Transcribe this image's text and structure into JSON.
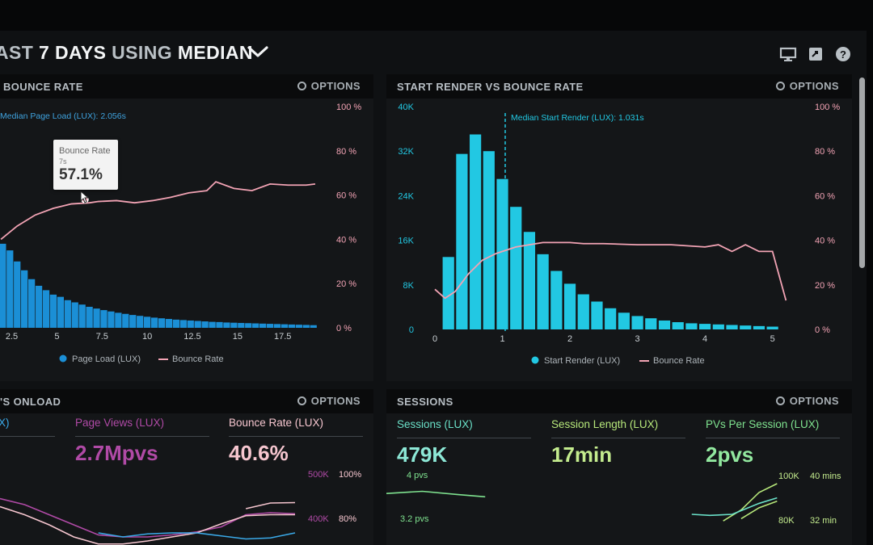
{
  "header": {
    "title_dim_1": "AST ",
    "title_bold_1": "7 DAYS ",
    "title_dim_2": "USING ",
    "title_bold_2": "MEDIAN",
    "icons": [
      "monitor-icon",
      "share-icon",
      "help-icon"
    ]
  },
  "options_label": "OPTIONS",
  "bounce_panel": {
    "title": "BOUNCE RATE",
    "annotation": "Median Page Load (LUX): 2.056s",
    "tooltip": {
      "label": "Bounce Rate",
      "sub": "7s",
      "value": "57.1%"
    },
    "legend": [
      "Page Load (LUX)",
      "Bounce Rate"
    ]
  },
  "start_render_panel": {
    "title": "START RENDER VS BOUNCE RATE",
    "annotation": "Median Start Render (LUX): 1.031s",
    "legend": [
      "Start Render (LUX)",
      "Bounce Rate"
    ]
  },
  "onload_panel": {
    "title": "'S ONLOAD",
    "kpis": [
      {
        "label": "X)",
        "value": ""
      },
      {
        "label": "Page Views (LUX)",
        "value": "2.7Mpvs"
      },
      {
        "label": "Bounce Rate (LUX)",
        "value": "40.6%"
      }
    ],
    "axis_left": [
      "500K",
      "400K"
    ],
    "axis_right": [
      "100%",
      "80%"
    ]
  },
  "sessions_panel": {
    "title": "SESSIONS",
    "kpis": [
      {
        "label": "Sessions (LUX)",
        "value": "479K"
      },
      {
        "label": "Session Length (LUX)",
        "value": "17min"
      },
      {
        "label": "PVs Per Session (LUX)",
        "value": "2pvs"
      }
    ],
    "axis_left": [
      "4 pvs",
      "3.2 pvs"
    ],
    "axis_mid": [
      "100K",
      "80K"
    ],
    "axis_right": [
      "40 mins",
      "32 min"
    ]
  },
  "colors": {
    "bar_blue": "#1b8fd6",
    "bar_cyan": "#22c8e3",
    "bounce_pink": "#f2a3b4",
    "purple": "#b04aa6",
    "light_pink": "#f6c6cf",
    "teal": "#6ae0c8",
    "lime": "#b6e77a",
    "green": "#7fe28f"
  },
  "chart_data": [
    {
      "type": "bar",
      "title": "BOUNCE RATE",
      "x_ticks": [
        "2.5",
        "5",
        "7.5",
        "10",
        "12.5",
        "15",
        "17.5"
      ],
      "y_right_ticks": [
        "0 %",
        "20 %",
        "40 %",
        "60 %",
        "80 %",
        "100 %"
      ],
      "xlim": [
        1.85,
        19.75
      ],
      "ylim_right": [
        0,
        100
      ],
      "legend_position": "bottom",
      "series": [
        {
          "name": "Page Load (LUX)",
          "kind": "bar",
          "bar_width": 0.37,
          "x": [
            2.0,
            2.4,
            2.8,
            3.2,
            3.6,
            4.0,
            4.4,
            4.8,
            5.2,
            5.6,
            6.0,
            6.4,
            6.8,
            7.2,
            7.6,
            8.0,
            8.4,
            8.8,
            9.2,
            9.6,
            10.0,
            10.4,
            10.8,
            11.2,
            11.6,
            12.0,
            12.4,
            12.8,
            13.2,
            13.6,
            14.0,
            14.4,
            14.8,
            15.2,
            15.6,
            16.0,
            16.4,
            16.8,
            17.2,
            17.6,
            18.0,
            18.4,
            18.8,
            19.2
          ],
          "values": [
            38,
            35,
            30,
            26,
            22,
            19,
            17,
            15,
            14,
            12.5,
            11.5,
            10.5,
            9.5,
            8.7,
            8,
            7.4,
            6.8,
            6.3,
            5.8,
            5.4,
            5,
            4.6,
            4.3,
            4,
            3.7,
            3.5,
            3.3,
            3.1,
            2.9,
            2.7,
            2.6,
            2.4,
            2.3,
            2.2,
            2.1,
            2,
            1.9,
            1.8,
            1.7,
            1.6,
            1.5,
            1.4,
            1.3,
            1.2
          ]
        },
        {
          "name": "Bounce Rate",
          "kind": "line",
          "x": [
            1.9,
            2.8,
            3.8,
            4.8,
            5.8,
            6.8,
            7.3,
            8.3,
            9.3,
            10.3,
            11.3,
            12.3,
            13.3,
            13.8,
            14.8,
            15.8,
            16.8,
            17.8,
            18.8,
            19.3
          ],
          "values": [
            40,
            46,
            51,
            54,
            56,
            56.5,
            57.1,
            57.5,
            56.5,
            57.5,
            59,
            61,
            62,
            66,
            63,
            62,
            65,
            64.5,
            64.5,
            65
          ]
        }
      ]
    },
    {
      "type": "bar",
      "title": "START RENDER VS BOUNCE RATE",
      "x_ticks": [
        "0",
        "1",
        "2",
        "3",
        "4",
        "5"
      ],
      "y_left_ticks": [
        "0",
        "8K",
        "16K",
        "24K",
        "32K",
        "40K"
      ],
      "y_right_ticks": [
        "0 %",
        "20 %",
        "40 %",
        "60 %",
        "80 %",
        "100 %"
      ],
      "xlim": [
        0,
        5.1
      ],
      "ylim_left": [
        0,
        40000
      ],
      "ylim_right": [
        0,
        100
      ],
      "legend_position": "bottom",
      "series": [
        {
          "name": "Start Render (LUX)",
          "kind": "bar",
          "bar_width": 0.17,
          "x": [
            0.2,
            0.4,
            0.6,
            0.8,
            1.0,
            1.2,
            1.4,
            1.6,
            1.8,
            2.0,
            2.2,
            2.4,
            2.6,
            2.8,
            3.0,
            3.2,
            3.4,
            3.6,
            3.8,
            4.0,
            4.2,
            4.4,
            4.6,
            4.8,
            5.0
          ],
          "values": [
            13000,
            31500,
            35000,
            32000,
            27000,
            22000,
            17500,
            13500,
            10500,
            8200,
            6300,
            5000,
            3800,
            3000,
            2400,
            2000,
            1600,
            1300,
            1100,
            1000,
            900,
            800,
            700,
            600,
            500
          ]
        },
        {
          "name": "Bounce Rate",
          "kind": "line",
          "x": [
            0,
            0.15,
            0.3,
            0.5,
            0.7,
            0.9,
            1.0,
            1.2,
            1.4,
            1.6,
            1.8,
            2.0,
            2.2,
            2.5,
            3.0,
            3.5,
            4.0,
            4.2,
            4.4,
            4.6,
            4.8,
            5.0,
            5.2
          ],
          "values": [
            18,
            14,
            17,
            25,
            31,
            34,
            35,
            37,
            38,
            39,
            39,
            39,
            38.5,
            38.5,
            38,
            38,
            37,
            38,
            35,
            38,
            35,
            35,
            13
          ]
        }
      ]
    },
    {
      "type": "line",
      "title": "'S ONLOAD",
      "y_left_ticks": [
        "500K",
        "400K"
      ],
      "y_right_ticks": [
        "100%",
        "80%"
      ],
      "ylim_left": [
        190000,
        570000
      ],
      "series": [
        {
          "name": "Page Views (LUX)",
          "x": [
            0,
            1,
            2,
            3,
            4,
            5,
            6,
            7,
            8,
            9,
            10,
            11,
            12
          ],
          "values": [
            420000,
            390000,
            340000,
            290000,
            240000,
            230000,
            230000,
            240000,
            255000,
            280000,
            340000,
            350000,
            345000
          ]
        },
        {
          "name": "Bounce Rate (LUX)",
          "x": [
            0,
            1,
            2,
            3,
            4,
            5,
            6,
            7,
            8,
            9,
            10,
            11,
            12
          ],
          "values": [
            380000,
            340000,
            290000,
            230000,
            195000,
            195000,
            210000,
            230000,
            250000,
            295000,
            335000,
            340000,
            340000
          ]
        },
        {
          "name": "",
          "x": [
            4,
            5,
            6,
            7,
            8,
            9,
            10,
            11,
            12
          ],
          "values": [
            250000,
            230000,
            245000,
            250000,
            250000,
            235000,
            220000,
            225000,
            250000
          ]
        },
        {
          "name": "",
          "x": [
            10,
            11,
            12
          ],
          "values": [
            370000,
            398000,
            400000
          ]
        }
      ]
    },
    {
      "type": "line",
      "title": "SESSIONS",
      "y_left_ticks": [
        "4 pvs",
        "3.2 pvs"
      ],
      "y_mid_ticks": [
        "100K",
        "80K"
      ],
      "y_right_ticks": [
        "40 mins",
        "32 min"
      ],
      "ylim": [
        1.0,
        4.5
      ],
      "series": [
        {
          "name": "",
          "x": [
            0,
            0.8,
            1.6,
            2.2
          ],
          "values": [
            3.35,
            3.45,
            3.3,
            3.2
          ]
        },
        {
          "name": "",
          "x": [
            7.5,
            7.9,
            8.3,
            8.7
          ],
          "values": [
            2.1,
            2.6,
            3.4,
            3.8
          ]
        },
        {
          "name": "",
          "x": [
            6.8,
            7.2,
            7.7,
            8.3,
            8.7
          ],
          "values": [
            2.4,
            2.35,
            2.4,
            2.9,
            3.15
          ]
        },
        {
          "name": "",
          "x": [
            7.9,
            8.3,
            8.7
          ],
          "values": [
            2.2,
            2.7,
            3.0
          ]
        }
      ]
    }
  ]
}
